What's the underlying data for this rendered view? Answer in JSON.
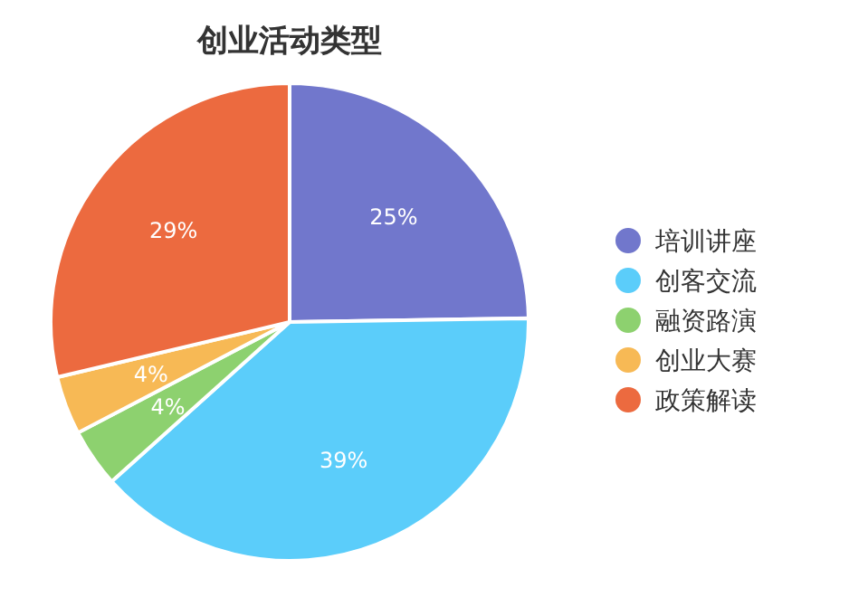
{
  "chart_data": {
    "type": "pie",
    "title": "创业活动类型",
    "categories": [
      "培训讲座",
      "创客交流",
      "融资路演",
      "创业大赛",
      "政策解读"
    ],
    "values": [
      25,
      39,
      4,
      4,
      29
    ],
    "colors": [
      "#7177cc",
      "#5bcdfa",
      "#8dd16f",
      "#f7b955",
      "#ec6a3f"
    ],
    "value_labels": [
      "25%",
      "39%",
      "4%",
      "4%",
      "29%"
    ],
    "legend": "right"
  }
}
